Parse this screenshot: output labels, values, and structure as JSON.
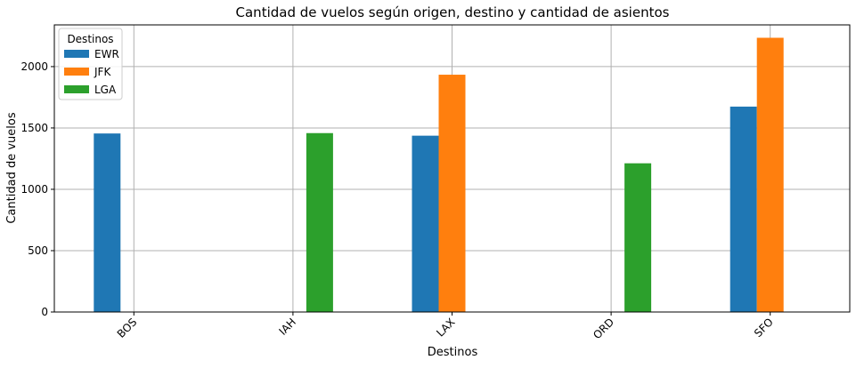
{
  "chart_data": {
    "type": "bar",
    "title": "Cantidad de vuelos según origen, destino y cantidad de asientos",
    "xlabel": "Destinos",
    "ylabel": "Cantidad de vuelos",
    "categories": [
      "BOS",
      "IAH",
      "LAX",
      "ORD",
      "SFO"
    ],
    "series": [
      {
        "name": "EWR",
        "color": "#1f77b4",
        "values": [
          1455,
          null,
          1437,
          null,
          1674
        ]
      },
      {
        "name": "JFK",
        "color": "#ff7f0e",
        "values": [
          null,
          null,
          1934,
          null,
          2235
        ]
      },
      {
        "name": "LGA",
        "color": "#2ca02c",
        "values": [
          null,
          1458,
          null,
          1212,
          null
        ]
      }
    ],
    "ylim": [
      0,
      2340
    ],
    "yticks": [
      0,
      500,
      1000,
      1500,
      2000
    ],
    "grid": true,
    "legend_title": "Destinos",
    "legend_position": "top-left",
    "xtick_rotation": 45
  }
}
